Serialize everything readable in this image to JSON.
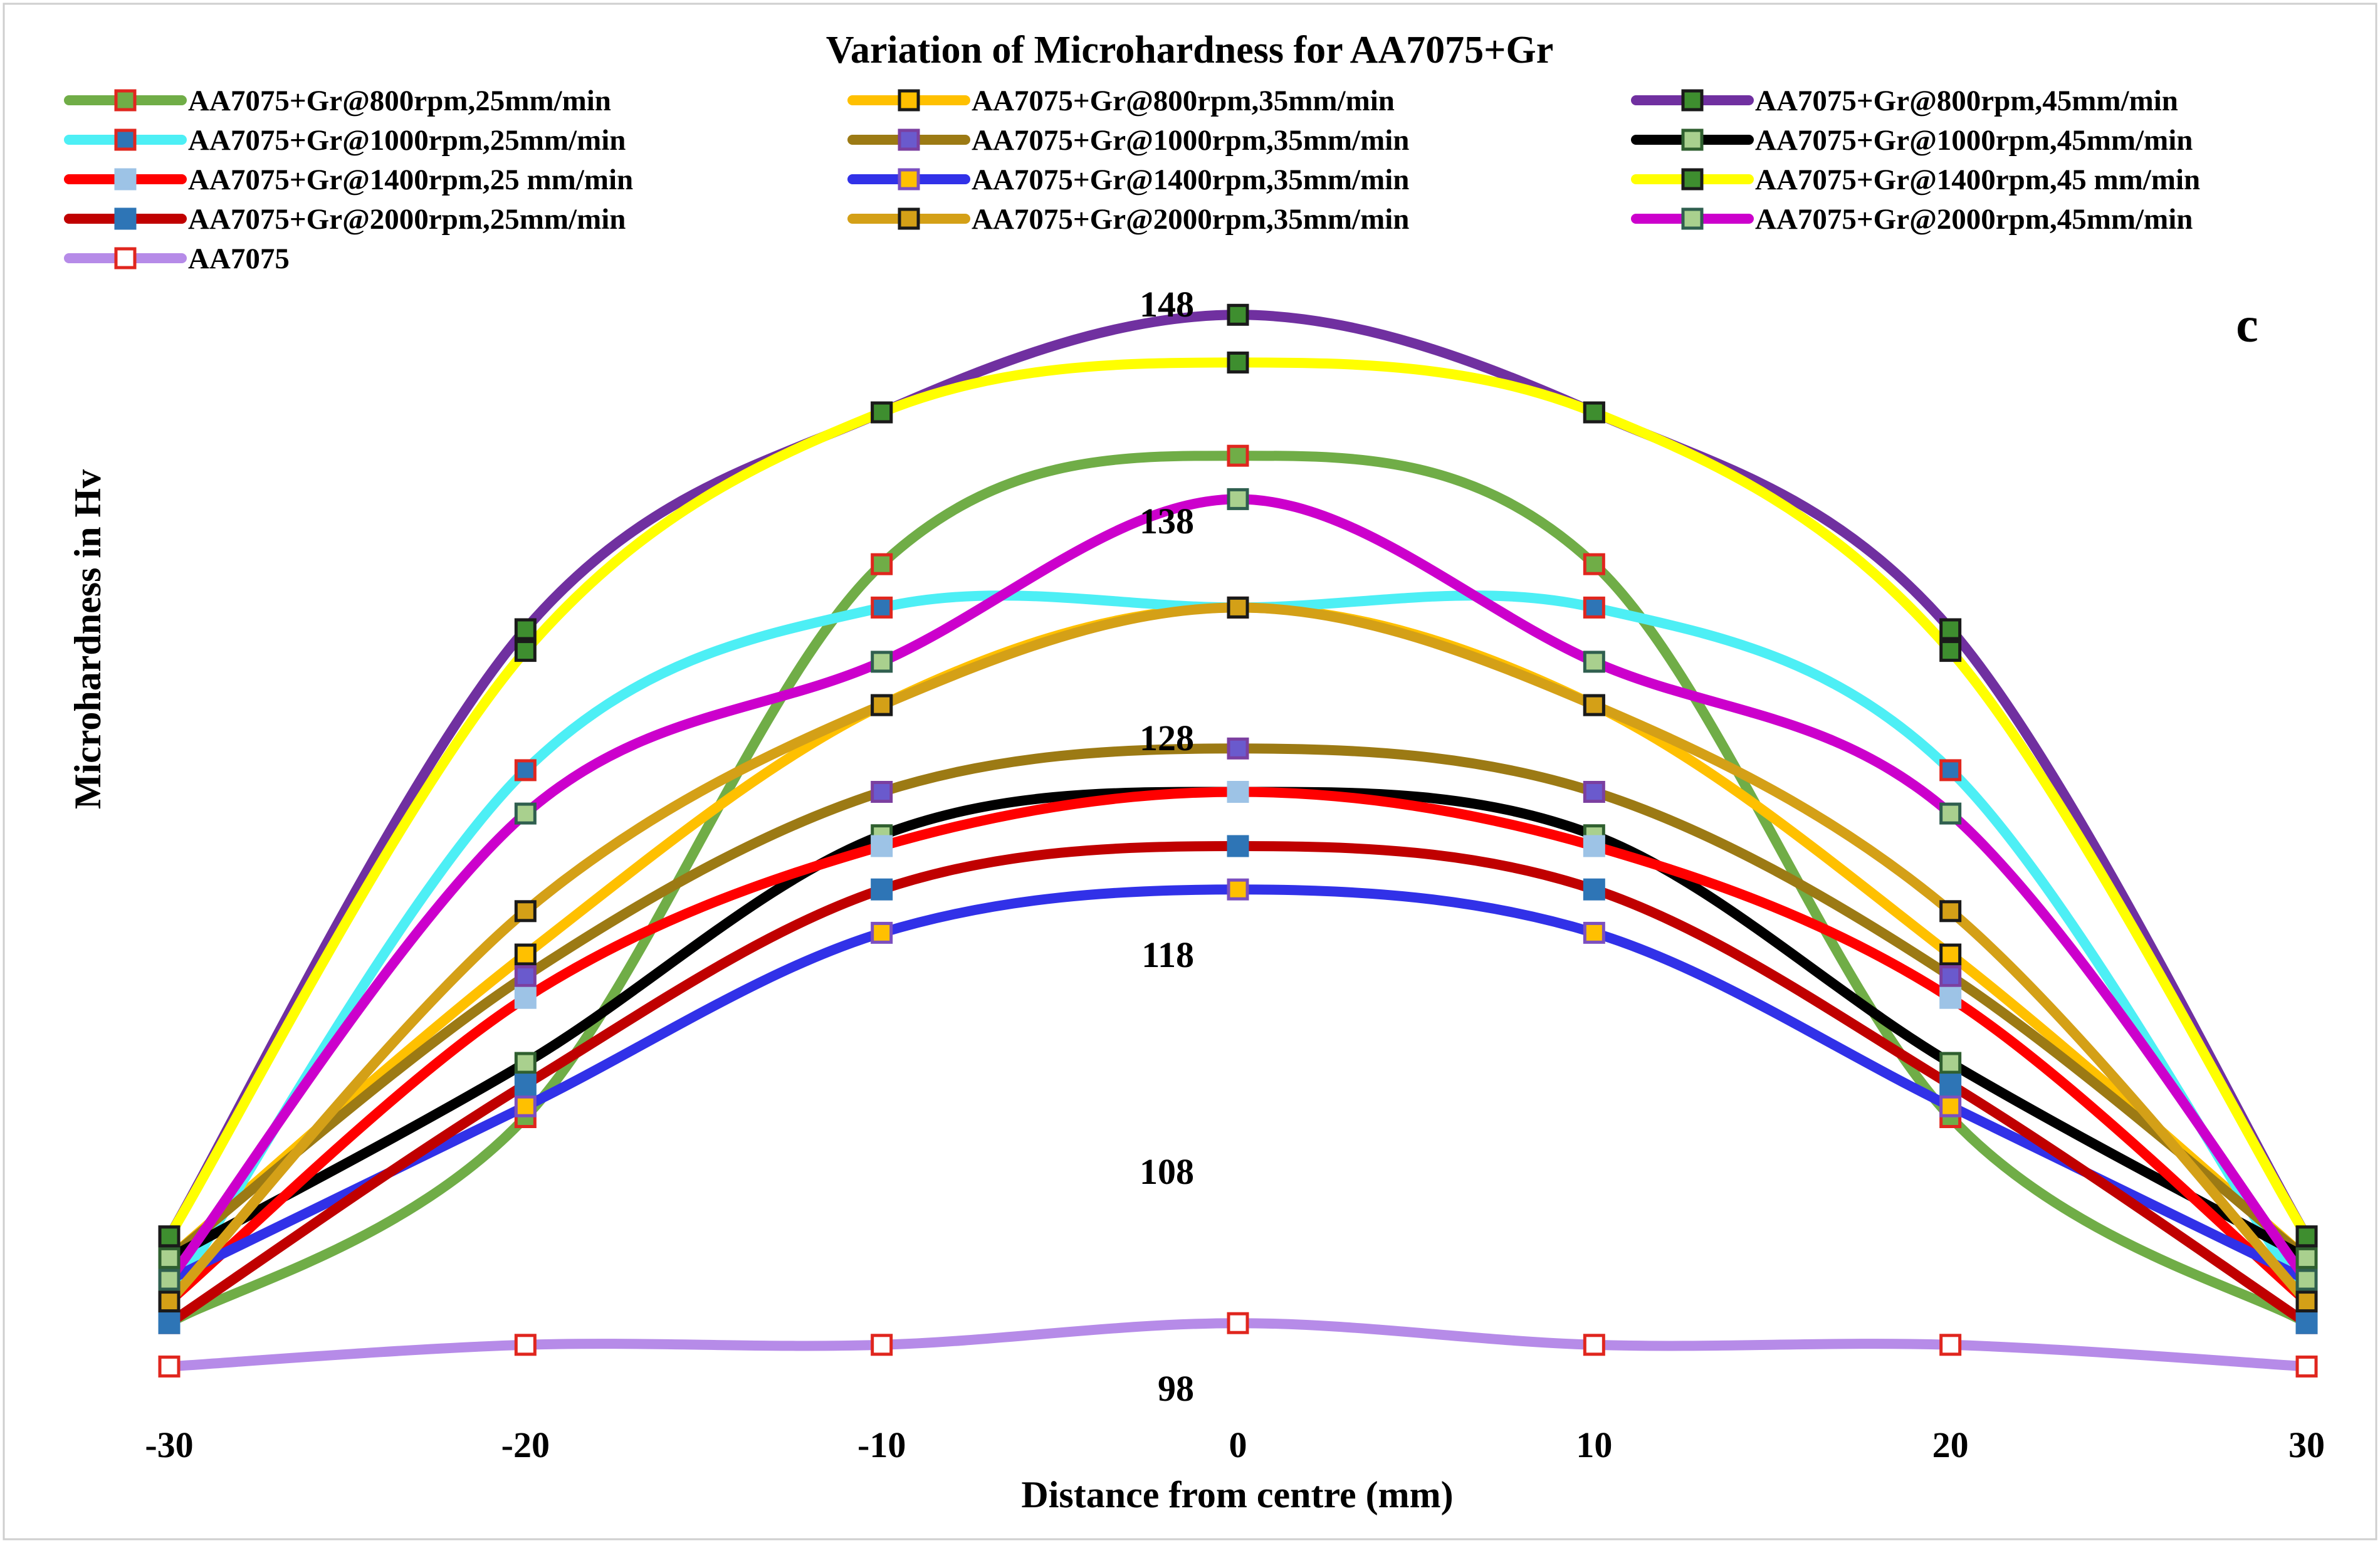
{
  "chart_data": {
    "type": "line",
    "title": "Variation of Microhardness for AA7075+Gr",
    "xlabel": "Distance from centre (mm)",
    "ylabel": "Microhardness in Hv",
    "annotation": "c",
    "x": [
      -30,
      -20,
      -10,
      0,
      10,
      20,
      30
    ],
    "x_ticks": [
      "-30",
      "-20",
      "-10",
      "0",
      "10",
      "20",
      "30"
    ],
    "y_ticks": [
      "98",
      "108",
      "118",
      "128",
      "138",
      "148"
    ],
    "xlim": [
      -30,
      30
    ],
    "ylim": [
      98,
      148
    ],
    "grid": false,
    "legend_position": "top",
    "series": [
      {
        "name": "AA7075+Gr@800rpm,25mm/min",
        "color": "#70AD47",
        "marker_fill": "#70AD47",
        "marker_edge": "#E0261E",
        "values": [
          101,
          110.5,
          136,
          141,
          136,
          110.5,
          101
        ]
      },
      {
        "name": "AA7075+Gr@800rpm,35mm/min",
        "color": "#FFC000",
        "marker_fill": "#FFC000",
        "marker_edge": "#1a1a1a",
        "values": [
          104,
          118,
          129.5,
          134,
          129.5,
          118,
          104
        ]
      },
      {
        "name": "AA7075+Gr@800rpm,45mm/min",
        "color": "#7030A0",
        "marker_fill": "#3E8E2F",
        "marker_edge": "#1a1a1a",
        "values": [
          105,
          133,
          143,
          147.5,
          143,
          133,
          105
        ]
      },
      {
        "name": "AA7075+Gr@1000rpm,25mm/min",
        "color": "#4DEFF5",
        "marker_fill": "#2E75B6",
        "marker_edge": "#E0261E",
        "values": [
          102,
          126.5,
          134,
          134,
          134,
          126.5,
          102
        ]
      },
      {
        "name": "AA7075+Gr@1000rpm,35mm/min",
        "color": "#9C7A14",
        "marker_fill": "#6A5ACD",
        "marker_edge": "#7B3FA0",
        "values": [
          104,
          117,
          125.5,
          127.5,
          125.5,
          117,
          104
        ]
      },
      {
        "name": "AA7075+Gr@1000rpm,45mm/min",
        "color": "#000000",
        "marker_fill": "#A9D08E",
        "marker_edge": "#2F5F2F",
        "values": [
          104,
          113,
          123.5,
          125.5,
          123.5,
          113,
          104
        ]
      },
      {
        "name": "AA7075+Gr@1400rpm,25 mm/min",
        "color": "#FF0000",
        "marker_fill": "#9DC3E6",
        "marker_edge": "#9DC3E6",
        "values": [
          102,
          116,
          123,
          125.5,
          123,
          116,
          102
        ]
      },
      {
        "name": "AA7075+Gr@1400rpm,35mm/min",
        "color": "#3131E8",
        "marker_fill": "#FFC000",
        "marker_edge": "#7B4FC0",
        "values": [
          103,
          111,
          119,
          121,
          119,
          111,
          103
        ]
      },
      {
        "name": "AA7075+Gr@1400rpm,45 mm/min",
        "color": "#FFFF00",
        "marker_fill": "#3E8E2F",
        "marker_edge": "#1a1a1a",
        "values": [
          105,
          132,
          143,
          145.3,
          143,
          132,
          105
        ]
      },
      {
        "name": "AA7075+Gr@2000rpm,25mm/min",
        "color": "#C00000",
        "marker_fill": "#2E75B6",
        "marker_edge": "#2E75B6",
        "values": [
          101,
          112,
          121,
          123,
          121,
          112,
          101
        ]
      },
      {
        "name": "AA7075+Gr@2000rpm,35mm/min",
        "color": "#D4A017",
        "marker_fill": "#D4A017",
        "marker_edge": "#1a1a1a",
        "values": [
          102,
          120,
          129.5,
          134,
          129.5,
          120,
          102
        ]
      },
      {
        "name": "AA7075+Gr@2000rpm,45mm/min",
        "color": "#CC00CC",
        "marker_fill": "#A9D08E",
        "marker_edge": "#2F5F4F",
        "values": [
          103,
          124.5,
          131.5,
          139,
          131.5,
          124.5,
          103
        ]
      },
      {
        "name": "AA7075",
        "color": "#B68BE8",
        "marker_fill": "#ffffff",
        "marker_edge": "#E0261E",
        "values": [
          99,
          100,
          100,
          101,
          100,
          100,
          99
        ]
      }
    ]
  }
}
